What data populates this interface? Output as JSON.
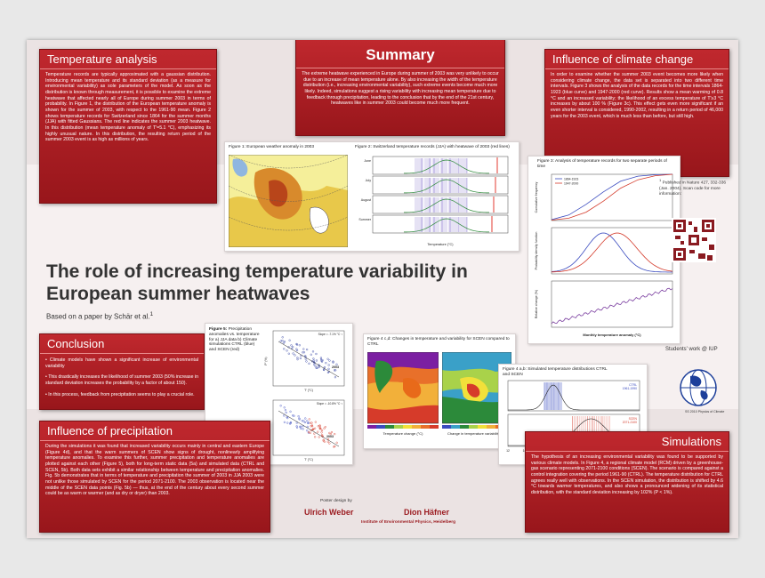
{
  "title": "The role of increasing temperature variability in European summer heatwaves",
  "subtitle": "Based on a paper by Schär et al.",
  "subtitle_sup": "1",
  "sections": {
    "temperature_analysis": {
      "heading": "Temperature analysis",
      "body": "Temperature records are typically approximated with a gaussian distribution. Introducing mean temperature and its standard deviation (as a measure for environmental variability) as sole parameters of the model. As soon as the distribution is known through measurement, it is possible to examine the extreme heatwave that affected nearly all of Europe during summer 2003 in terms of probability. In Figure 1, the distribution of the European temperature anomaly is shown for the summer of 2003, with respect to the 1961-90 mean. Figure 2 shows temperature records for Switzerland since 1864 for the summer months (JJA) with fitted Gaussians. The red line indicates the summer 2003 heatwave. In this distribution (mean temperature anomaly of T'=5.1 °C), emphasizing its highly unusual nature. In this distribution, the resulting return period of the summer 2003 event is as high as millions of years."
    },
    "summary": {
      "heading": "Summary",
      "body": "The extreme heatwave experienced in Europe during summer of 2003 was very unlikely to occur due to an increase of mean temperature alone. By also increasing the width of the temperature distribution (i.e., increasing environmental variability), such extreme events become much more likely. Indeed, simulations suggest a rising variability with increasing mean temperature due to feedback through precipitation, leading to the conclusion that by the end of the 21st century, heatwaves like in summer 2003 could become much more frequent."
    },
    "climate_change": {
      "heading": "Influence of climate change",
      "body": "In order to examine whether the summer 2003 event becomes more likely when considering climate change, the data set is separated into two different time intervals. Figure 3 shows the analysis of the data records for the time intervals 1864-1923 (blue curve) and 1947-2000 (red curve). Results show a mean warming of 0.8 °C and an increased variability; the likelihood of an excess temperature of T'≥3 °C increases by about 100 % (Figure 3c). This effect gets even more significant if an even shorter interval is considered, 1990-2002, resulting in a return period of 46,000 years for the 2003 event, which is much less than before, but still high."
    },
    "conclusion": {
      "heading": "Conclusion",
      "items": [
        "Climate models have shown a significant increase of environmental variability",
        "This drastically increases the likelihood of summer 2003 (50% increase in standard deviation increases the probability by a factor of about 150).",
        "In this process, feedback from precipitation seems to play a crucial role."
      ]
    },
    "precipitation": {
      "heading": "Influence of precipitation",
      "body": "During the simulations it was found that increased variability occurs mainly in central and eastern Europe (Figure 4d), and that the warm summers of SCEN show signs of drought, nonlinearly amplifying temperature anomalies. To examine this further, summer precipitation and temperature anomalies are plotted against each other (Figure 5), both for long-term static data (5a) and simulated data (CTRL and SCEN, 5b). Both data sets exhibit a similar relationship between temperature and precipitation anomalies. Fig. 5b demonstrates that in terms of temperature and precipitation the summer of 2003 in JJA 2003 were not unlike those simulated by SCEN for the period 2071-2100. The 2003 observation is located near the middle of the SCEN data points (Fig. 5b) — thus, at the end of the century about every second summer could be as warm or warmer (and as dry or dryer) than 2003."
    },
    "simulations": {
      "heading": "Simulations",
      "body": "The hypothesis of an increasing environmental variability was found to be supported by various climate models. In Figure 4, a regional climate model (RCM) driven by a greenhouse-gas scenario representing 2071-2100 conditions (SCEN). The scenario is compared against a control integration covering the period 1961-90 (CTRL). The temperature distribution for CTRL agrees really well with observations. In the SCEN simulation, the distribution is shifted by 4.6 °C towards warmer temperatures, and also shows a pronounced widening of its statistical distribution, with the standard deviation increasing by 102% (P < 1%)."
    }
  },
  "figures": {
    "fig1_caption": "Figure 1: European weather anomaly in 2003",
    "fig2_caption": "Figure 2: Switzerland temperature records (JJA) with heatwave of 2003 (red lines)",
    "fig2_panels": [
      "June",
      "July",
      "August",
      "Summer"
    ],
    "fig2_xlabel": "Temperature (°C)",
    "fig3_caption": "Figure 3: Analysis of temperature records for two separate periods of time",
    "fig3_legend": [
      "1864-1923",
      "1947-2000"
    ],
    "fig3_ylabels": [
      "Cumulative frequency",
      "Probability density function",
      "Relative change (%)"
    ],
    "fig3_xlabel": "Monthly temperature anomaly (°C)",
    "fig5_caption_title": "Figure 5:",
    "fig5_caption": "Precipitation anomalies vs. temperature for a) JJA data b) Climate simulations CTRL (blue) and SCEN (red)",
    "fig5_xlabel": "T' (°C)",
    "fig5_ylabel": "P' (%)",
    "fig5_year": "2003",
    "fig5_a_slope": "Slope = -7.1% °C⁻¹",
    "fig5_b_slope": "Slope = -10.8% °C⁻¹",
    "fig4cd_caption": "Figure 4 c,d: Changes in temperature and variability for SCEN compared to CTRL",
    "fig4cd_labels": [
      "Temperature change (°C)",
      "Change in temperature variability (%)"
    ],
    "fig4ab_caption": "Figure 4 a,b: Simulated temperature distributions CTRL and SCEN",
    "fig4ab_legend": [
      "CTRL",
      "1961-1990",
      "SCEN",
      "2071-2100"
    ],
    "fig4ab_xticks": [
      "12",
      "14",
      "16",
      "18",
      "20",
      "22",
      "24",
      "26",
      "28"
    ],
    "fig4ab_xlabel": "Temperature (°C)"
  },
  "footnote": {
    "mark": "1",
    "text": "Published in Nature 427, 332-336 (Jan. 2004). Scan code for more information:"
  },
  "students": {
    "text": "Students' work @ IUP",
    "logo_caption": "SS 2010 Physics of Climate"
  },
  "credits": {
    "label": "Poster design by",
    "author1": "Ulrich Weber",
    "author2": "Dion Häfner",
    "institute": "Institute of Environmental Physics, Heidelberg"
  },
  "chart_data": [
    {
      "type": "line",
      "title": "Figure 3: Analysis of temperature records for two separate periods of time",
      "series": [
        {
          "name": "1864-1923",
          "x": [
            -3,
            -2,
            -1,
            0,
            1,
            2,
            3,
            4
          ],
          "values": [
            0.02,
            0.12,
            0.35,
            0.62,
            0.85,
            0.96,
            0.99,
            1.0
          ]
        },
        {
          "name": "1947-2000",
          "x": [
            -3,
            -2,
            -1,
            0,
            1,
            2,
            3,
            4
          ],
          "values": [
            0.01,
            0.05,
            0.18,
            0.42,
            0.7,
            0.88,
            0.97,
            1.0
          ]
        }
      ],
      "xlabel": "Monthly temperature anomaly (°C)",
      "ylabel": "Cumulative frequency",
      "ylim": [
        0,
        1
      ]
    }
  ],
  "colors": {
    "accent_red": "#a81d22",
    "ctrl_blue": "#3a4bbf",
    "scen_red": "#d43a2a"
  }
}
